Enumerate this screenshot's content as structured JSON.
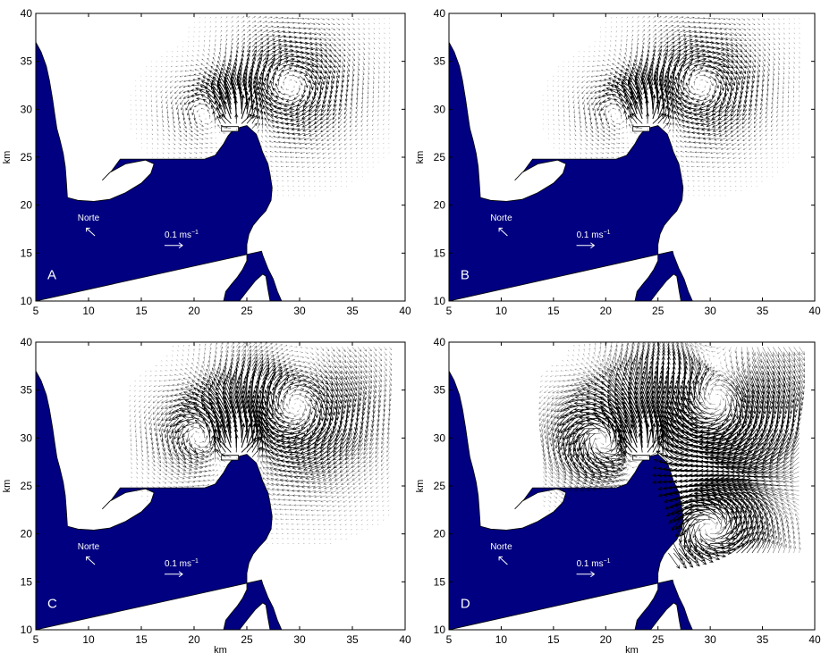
{
  "colors": {
    "land": "#000080",
    "land_text": "#ffffff",
    "arrows": "#000000",
    "axes": "#000000",
    "background": "#ffffff"
  },
  "chart_data": [
    {
      "type": "quiver",
      "panel_label": "A",
      "xlabel": "",
      "ylabel": "km",
      "xlim": [
        5,
        40
      ],
      "ylim": [
        10,
        40
      ],
      "xticks": [
        "5",
        "10",
        "15",
        "20",
        "25",
        "30",
        "35",
        "40"
      ],
      "yticks": [
        "10",
        "15",
        "20",
        "25",
        "30",
        "35",
        "40"
      ],
      "north_label": "Norte",
      "scale_label": "0.1 ms",
      "scale_exp": "−1",
      "scale_value_ms": 0.1,
      "intensity": 0.55,
      "fields": [
        {
          "kind": "vortex",
          "cx": 29,
          "cy": 32.5,
          "radius": 5,
          "sense": "cw",
          "strength": 1.0
        },
        {
          "kind": "vortex",
          "cx": 21.5,
          "cy": 30,
          "radius": 3.5,
          "sense": "ccw",
          "strength": 0.8
        },
        {
          "kind": "source",
          "cx": 24,
          "cy": 28.5,
          "radius": 2,
          "strength": 0.9
        }
      ]
    },
    {
      "type": "quiver",
      "panel_label": "B",
      "xlabel": "",
      "ylabel": "km",
      "xlim": [
        5,
        40
      ],
      "ylim": [
        10,
        40
      ],
      "xticks": [
        "5",
        "10",
        "15",
        "20",
        "25",
        "30",
        "35",
        "40"
      ],
      "yticks": [
        "10",
        "15",
        "20",
        "25",
        "30",
        "35",
        "40"
      ],
      "north_label": "Norte",
      "scale_label": "0.1 ms",
      "scale_exp": "−1",
      "scale_value_ms": 0.1,
      "intensity": 0.6,
      "fields": [
        {
          "kind": "vortex",
          "cx": 29,
          "cy": 32.5,
          "radius": 5,
          "sense": "cw",
          "strength": 1.0
        },
        {
          "kind": "vortex",
          "cx": 21.5,
          "cy": 30,
          "radius": 3.5,
          "sense": "ccw",
          "strength": 0.8
        },
        {
          "kind": "source",
          "cx": 24,
          "cy": 28.5,
          "radius": 2,
          "strength": 0.9
        }
      ]
    },
    {
      "type": "quiver",
      "panel_label": "C",
      "xlabel": "km",
      "ylabel": "km",
      "xlim": [
        5,
        40
      ],
      "ylim": [
        10,
        40
      ],
      "xticks": [
        "5",
        "10",
        "15",
        "20",
        "25",
        "30",
        "35",
        "40"
      ],
      "yticks": [
        "10",
        "15",
        "20",
        "25",
        "30",
        "35",
        "40"
      ],
      "north_label": "Norte",
      "scale_label": "0.1 ms",
      "scale_exp": "−1",
      "scale_value_ms": 0.1,
      "intensity": 0.85,
      "fields": [
        {
          "kind": "vortex",
          "cx": 29.5,
          "cy": 33,
          "radius": 6,
          "sense": "cw",
          "strength": 1.1
        },
        {
          "kind": "vortex",
          "cx": 21,
          "cy": 30.5,
          "radius": 4,
          "sense": "ccw",
          "strength": 1.0
        },
        {
          "kind": "source",
          "cx": 24,
          "cy": 28.5,
          "radius": 2,
          "strength": 1.0
        },
        {
          "kind": "uniform",
          "cx": 30,
          "cy": 38.5,
          "radius": 3,
          "ux": -1,
          "uy": 0,
          "strength": 0.5
        }
      ]
    },
    {
      "type": "quiver",
      "panel_label": "D",
      "xlabel": "km",
      "ylabel": "km",
      "xlim": [
        5,
        40
      ],
      "ylim": [
        10,
        40
      ],
      "xticks": [
        "5",
        "10",
        "15",
        "20",
        "25",
        "30",
        "35",
        "40"
      ],
      "yticks": [
        "10",
        "15",
        "20",
        "25",
        "30",
        "35",
        "40"
      ],
      "north_label": "Norte",
      "scale_label": "0.1 ms",
      "scale_exp": "−1",
      "scale_value_ms": 0.1,
      "intensity": 1.3,
      "fields": [
        {
          "kind": "vortex",
          "cx": 30.5,
          "cy": 33,
          "radius": 6.5,
          "sense": "cw",
          "strength": 1.3
        },
        {
          "kind": "vortex",
          "cx": 20,
          "cy": 30,
          "radius": 4,
          "sense": "ccw",
          "strength": 1.2
        },
        {
          "kind": "source",
          "cx": 23.5,
          "cy": 28.5,
          "radius": 2,
          "strength": 1.0
        },
        {
          "kind": "uniform",
          "cx": 30,
          "cy": 38.5,
          "radius": 3.5,
          "ux": -1,
          "uy": 0,
          "strength": 1.0
        },
        {
          "kind": "vortex",
          "cx": 30,
          "cy": 21,
          "radius": 5,
          "sense": "ccw",
          "strength": 1.2
        }
      ]
    }
  ]
}
